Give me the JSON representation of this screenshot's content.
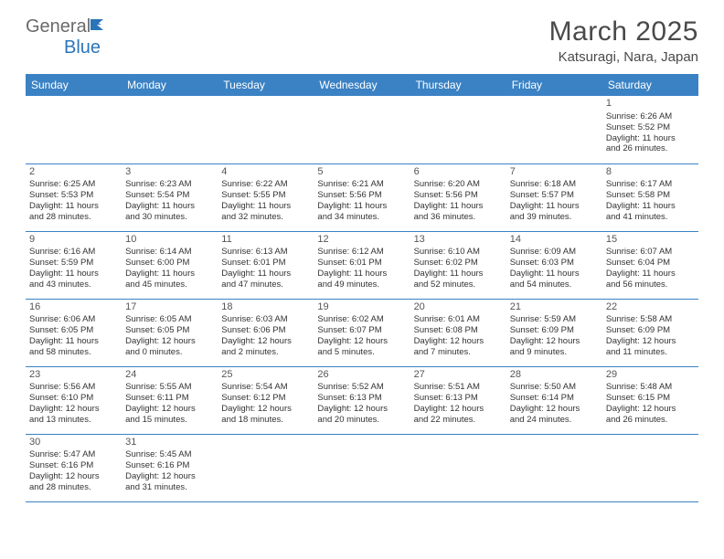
{
  "logo": {
    "text_gray": "General",
    "text_blue": "Blue"
  },
  "header": {
    "month": "March 2025",
    "location": "Katsuragi, Nara, Japan"
  },
  "colors": {
    "header_bg": "#3a82c4",
    "header_text": "#ffffff",
    "border": "#3a82c4",
    "text": "#333333",
    "title": "#4a4a4a",
    "logo_gray": "#6a6a6a",
    "logo_blue": "#2b74b8",
    "background": "#ffffff"
  },
  "weekdays": [
    "Sunday",
    "Monday",
    "Tuesday",
    "Wednesday",
    "Thursday",
    "Friday",
    "Saturday"
  ],
  "weeks": [
    [
      null,
      null,
      null,
      null,
      null,
      null,
      {
        "d": "1",
        "sr": "Sunrise: 6:26 AM",
        "ss": "Sunset: 5:52 PM",
        "dl1": "Daylight: 11 hours",
        "dl2": "and 26 minutes."
      }
    ],
    [
      {
        "d": "2",
        "sr": "Sunrise: 6:25 AM",
        "ss": "Sunset: 5:53 PM",
        "dl1": "Daylight: 11 hours",
        "dl2": "and 28 minutes."
      },
      {
        "d": "3",
        "sr": "Sunrise: 6:23 AM",
        "ss": "Sunset: 5:54 PM",
        "dl1": "Daylight: 11 hours",
        "dl2": "and 30 minutes."
      },
      {
        "d": "4",
        "sr": "Sunrise: 6:22 AM",
        "ss": "Sunset: 5:55 PM",
        "dl1": "Daylight: 11 hours",
        "dl2": "and 32 minutes."
      },
      {
        "d": "5",
        "sr": "Sunrise: 6:21 AM",
        "ss": "Sunset: 5:56 PM",
        "dl1": "Daylight: 11 hours",
        "dl2": "and 34 minutes."
      },
      {
        "d": "6",
        "sr": "Sunrise: 6:20 AM",
        "ss": "Sunset: 5:56 PM",
        "dl1": "Daylight: 11 hours",
        "dl2": "and 36 minutes."
      },
      {
        "d": "7",
        "sr": "Sunrise: 6:18 AM",
        "ss": "Sunset: 5:57 PM",
        "dl1": "Daylight: 11 hours",
        "dl2": "and 39 minutes."
      },
      {
        "d": "8",
        "sr": "Sunrise: 6:17 AM",
        "ss": "Sunset: 5:58 PM",
        "dl1": "Daylight: 11 hours",
        "dl2": "and 41 minutes."
      }
    ],
    [
      {
        "d": "9",
        "sr": "Sunrise: 6:16 AM",
        "ss": "Sunset: 5:59 PM",
        "dl1": "Daylight: 11 hours",
        "dl2": "and 43 minutes."
      },
      {
        "d": "10",
        "sr": "Sunrise: 6:14 AM",
        "ss": "Sunset: 6:00 PM",
        "dl1": "Daylight: 11 hours",
        "dl2": "and 45 minutes."
      },
      {
        "d": "11",
        "sr": "Sunrise: 6:13 AM",
        "ss": "Sunset: 6:01 PM",
        "dl1": "Daylight: 11 hours",
        "dl2": "and 47 minutes."
      },
      {
        "d": "12",
        "sr": "Sunrise: 6:12 AM",
        "ss": "Sunset: 6:01 PM",
        "dl1": "Daylight: 11 hours",
        "dl2": "and 49 minutes."
      },
      {
        "d": "13",
        "sr": "Sunrise: 6:10 AM",
        "ss": "Sunset: 6:02 PM",
        "dl1": "Daylight: 11 hours",
        "dl2": "and 52 minutes."
      },
      {
        "d": "14",
        "sr": "Sunrise: 6:09 AM",
        "ss": "Sunset: 6:03 PM",
        "dl1": "Daylight: 11 hours",
        "dl2": "and 54 minutes."
      },
      {
        "d": "15",
        "sr": "Sunrise: 6:07 AM",
        "ss": "Sunset: 6:04 PM",
        "dl1": "Daylight: 11 hours",
        "dl2": "and 56 minutes."
      }
    ],
    [
      {
        "d": "16",
        "sr": "Sunrise: 6:06 AM",
        "ss": "Sunset: 6:05 PM",
        "dl1": "Daylight: 11 hours",
        "dl2": "and 58 minutes."
      },
      {
        "d": "17",
        "sr": "Sunrise: 6:05 AM",
        "ss": "Sunset: 6:05 PM",
        "dl1": "Daylight: 12 hours",
        "dl2": "and 0 minutes."
      },
      {
        "d": "18",
        "sr": "Sunrise: 6:03 AM",
        "ss": "Sunset: 6:06 PM",
        "dl1": "Daylight: 12 hours",
        "dl2": "and 2 minutes."
      },
      {
        "d": "19",
        "sr": "Sunrise: 6:02 AM",
        "ss": "Sunset: 6:07 PM",
        "dl1": "Daylight: 12 hours",
        "dl2": "and 5 minutes."
      },
      {
        "d": "20",
        "sr": "Sunrise: 6:01 AM",
        "ss": "Sunset: 6:08 PM",
        "dl1": "Daylight: 12 hours",
        "dl2": "and 7 minutes."
      },
      {
        "d": "21",
        "sr": "Sunrise: 5:59 AM",
        "ss": "Sunset: 6:09 PM",
        "dl1": "Daylight: 12 hours",
        "dl2": "and 9 minutes."
      },
      {
        "d": "22",
        "sr": "Sunrise: 5:58 AM",
        "ss": "Sunset: 6:09 PM",
        "dl1": "Daylight: 12 hours",
        "dl2": "and 11 minutes."
      }
    ],
    [
      {
        "d": "23",
        "sr": "Sunrise: 5:56 AM",
        "ss": "Sunset: 6:10 PM",
        "dl1": "Daylight: 12 hours",
        "dl2": "and 13 minutes."
      },
      {
        "d": "24",
        "sr": "Sunrise: 5:55 AM",
        "ss": "Sunset: 6:11 PM",
        "dl1": "Daylight: 12 hours",
        "dl2": "and 15 minutes."
      },
      {
        "d": "25",
        "sr": "Sunrise: 5:54 AM",
        "ss": "Sunset: 6:12 PM",
        "dl1": "Daylight: 12 hours",
        "dl2": "and 18 minutes."
      },
      {
        "d": "26",
        "sr": "Sunrise: 5:52 AM",
        "ss": "Sunset: 6:13 PM",
        "dl1": "Daylight: 12 hours",
        "dl2": "and 20 minutes."
      },
      {
        "d": "27",
        "sr": "Sunrise: 5:51 AM",
        "ss": "Sunset: 6:13 PM",
        "dl1": "Daylight: 12 hours",
        "dl2": "and 22 minutes."
      },
      {
        "d": "28",
        "sr": "Sunrise: 5:50 AM",
        "ss": "Sunset: 6:14 PM",
        "dl1": "Daylight: 12 hours",
        "dl2": "and 24 minutes."
      },
      {
        "d": "29",
        "sr": "Sunrise: 5:48 AM",
        "ss": "Sunset: 6:15 PM",
        "dl1": "Daylight: 12 hours",
        "dl2": "and 26 minutes."
      }
    ],
    [
      {
        "d": "30",
        "sr": "Sunrise: 5:47 AM",
        "ss": "Sunset: 6:16 PM",
        "dl1": "Daylight: 12 hours",
        "dl2": "and 28 minutes."
      },
      {
        "d": "31",
        "sr": "Sunrise: 5:45 AM",
        "ss": "Sunset: 6:16 PM",
        "dl1": "Daylight: 12 hours",
        "dl2": "and 31 minutes."
      },
      null,
      null,
      null,
      null,
      null
    ]
  ]
}
